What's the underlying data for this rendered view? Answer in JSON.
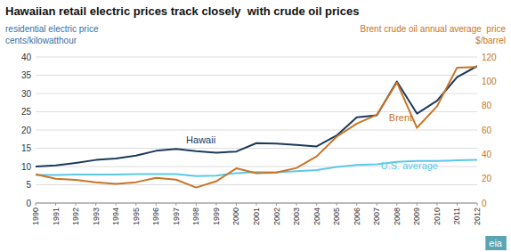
{
  "chart_data": {
    "type": "line",
    "title": "Hawaiian retail electric prices track closely  with crude oil prices",
    "y_label": [
      "residential electric price",
      "cents/kilowatthour"
    ],
    "y2_label": [
      "Brent crude oil annual average  price",
      "$/barrel"
    ],
    "x": [
      1990,
      1991,
      1992,
      1993,
      1994,
      1995,
      1996,
      1997,
      1998,
      1999,
      2000,
      2001,
      2002,
      2003,
      2004,
      2005,
      2006,
      2007,
      2008,
      2009,
      2010,
      2011,
      2012
    ],
    "xlim": [
      1990,
      2012
    ],
    "xticks": [
      1990,
      1991,
      1992,
      1993,
      1994,
      1995,
      1996,
      1997,
      1998,
      1999,
      2000,
      2001,
      2002,
      2003,
      2004,
      2005,
      2006,
      2007,
      2008,
      2009,
      2010,
      2011,
      2012
    ],
    "ylim": [
      0,
      40
    ],
    "yticks": [
      0,
      5,
      10,
      15,
      20,
      25,
      30,
      35,
      40
    ],
    "y2lim": [
      0,
      120
    ],
    "y2ticks": [
      0,
      20,
      40,
      60,
      80,
      100,
      120
    ],
    "grid": true,
    "series": [
      {
        "name": "Hawaii",
        "color": "#1a3a5c",
        "values": [
          10.0,
          10.3,
          11.0,
          11.8,
          12.2,
          13.0,
          14.3,
          14.8,
          14.2,
          13.8,
          14.1,
          16.4,
          16.3,
          15.9,
          15.5,
          18.5,
          23.5,
          24.0,
          33.3,
          24.5,
          28.0,
          34.5,
          37.5
        ]
      },
      {
        "name": "U.S. average",
        "color": "#5bc8e8",
        "values": [
          7.7,
          7.7,
          7.8,
          7.8,
          7.8,
          7.9,
          7.9,
          7.9,
          7.4,
          7.5,
          8.2,
          8.5,
          8.4,
          8.7,
          9.0,
          9.9,
          10.4,
          10.6,
          11.3,
          11.5,
          11.5,
          11.7,
          11.8
        ]
      },
      {
        "name": "Brent",
        "color": "#c87428",
        "axis": "y2",
        "values": [
          23.7,
          20.0,
          19.0,
          17.0,
          15.8,
          17.1,
          20.7,
          19.2,
          12.7,
          17.9,
          28.5,
          24.5,
          25.0,
          28.8,
          38.3,
          54.5,
          65.2,
          72.5,
          99.0,
          61.8,
          79.5,
          111.3,
          111.7
        ]
      }
    ],
    "annotations": [
      "eia"
    ]
  }
}
